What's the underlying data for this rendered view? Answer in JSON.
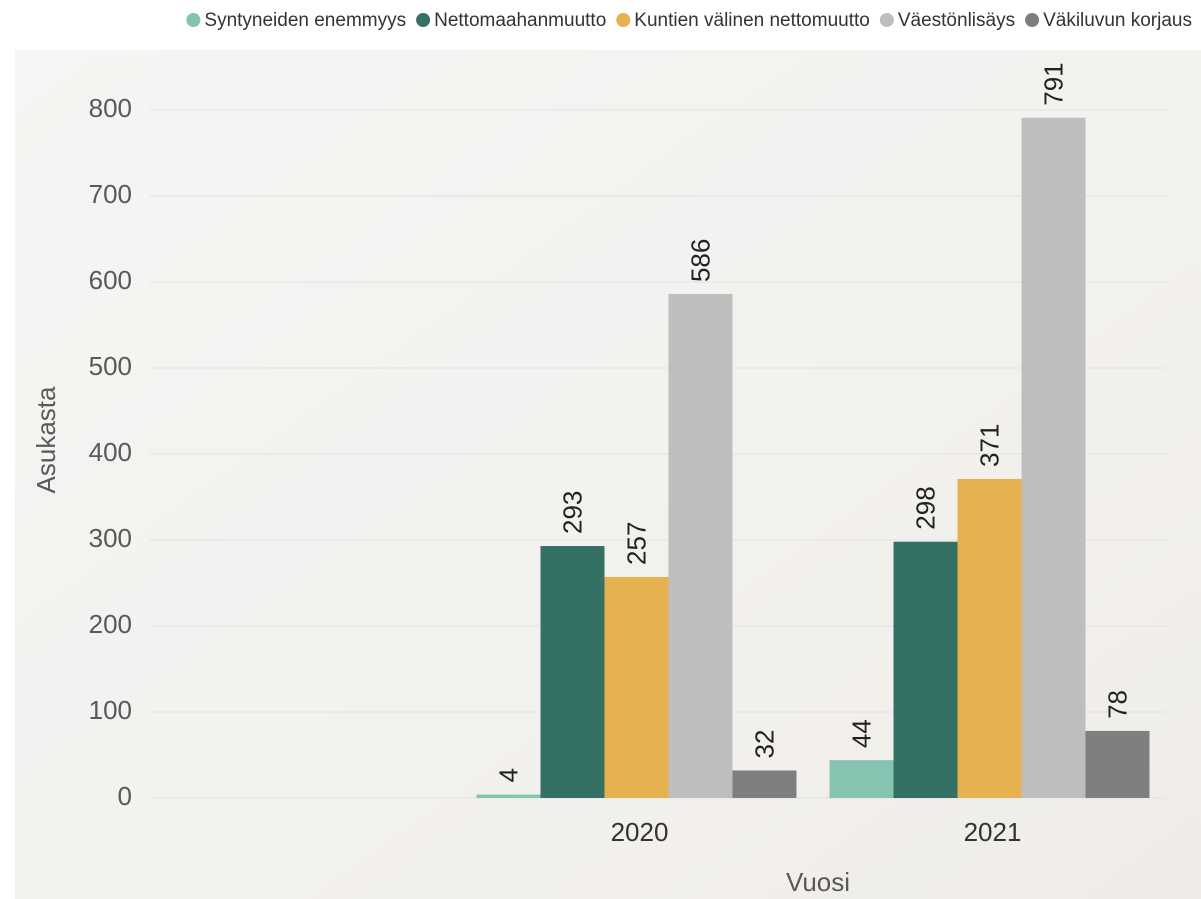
{
  "chart_data": {
    "type": "bar",
    "categories": [
      null,
      "2020",
      "2021"
    ],
    "series": [
      {
        "name": "Syntyneiden enemmyys",
        "color": "#86c3b0",
        "values": [
          null,
          4,
          44
        ]
      },
      {
        "name": "Nettomaahanmuutto",
        "color": "#357064",
        "values": [
          null,
          293,
          298
        ]
      },
      {
        "name": "Kuntien välinen nettomuutto",
        "color": "#e8b14f",
        "values": [
          null,
          257,
          371
        ]
      },
      {
        "name": "Väestönlisäys",
        "color": "#bebebe",
        "values": [
          null,
          586,
          791
        ]
      },
      {
        "name": "Väkiluvun korjaus",
        "color": "#7f7f7f",
        "values": [
          null,
          32,
          78
        ]
      }
    ],
    "xlabel": "Vuosi",
    "ylabel": "Asukasta",
    "ylim": [
      0,
      800
    ],
    "yticks": [
      0,
      100,
      200,
      300,
      400,
      500,
      600,
      700,
      800
    ],
    "grid": true,
    "legend": "top"
  }
}
